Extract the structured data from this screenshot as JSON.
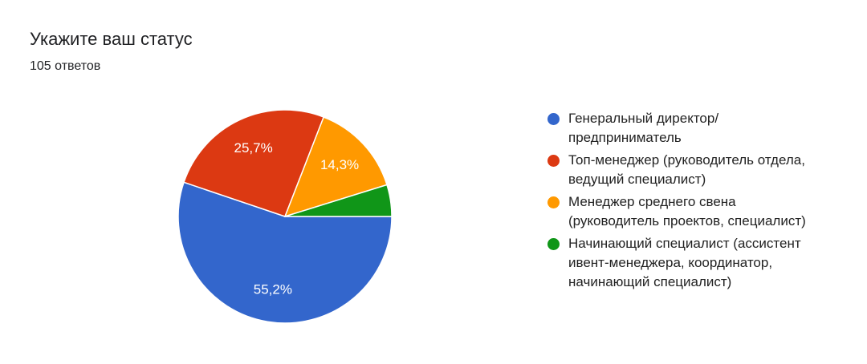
{
  "chart_data": {
    "type": "pie",
    "title": "Укажите ваш статус",
    "subtitle": "105 ответов",
    "categories": [
      "Генеральный директор/предприниматель",
      "Топ-менеджер (руководитель отдела, ведущий специалист)",
      "Менеджер среднего свена (руководитель проектов, специалист)",
      "Начинающий специалист (ассистент ивент-менеджера, координатор, начинающий специалист)"
    ],
    "values": [
      55.2,
      25.7,
      14.3,
      4.8
    ],
    "value_labels": [
      "55,2%",
      "25,7%",
      "14,3%",
      null
    ],
    "colors": [
      "#3366cc",
      "#dc3912",
      "#ff9900",
      "#109618"
    ],
    "legend": "right"
  }
}
